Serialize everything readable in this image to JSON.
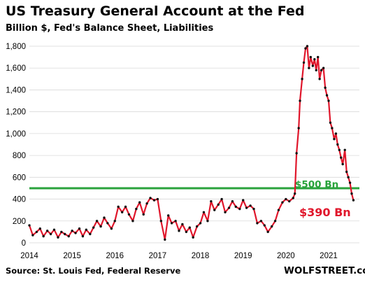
{
  "chart_data": {
    "type": "line",
    "title": "US Treasury General Account at the Fed",
    "subtitle": "Billion $, Fed's Balance Sheet, Liabilities",
    "xlabel": "",
    "ylabel": "",
    "ylim": [
      0,
      1800
    ],
    "xlim": [
      "2014-01",
      "2021-09"
    ],
    "y_ticks": [
      0,
      200,
      400,
      600,
      800,
      1000,
      1200,
      1400,
      1600,
      1800
    ],
    "y_tick_labels": [
      "0",
      "200",
      "400",
      "600",
      "800",
      "1,000",
      "1,200",
      "1,400",
      "1,600",
      "1,800"
    ],
    "x_ticks": [
      2014,
      2015,
      2016,
      2017,
      2018,
      2019,
      2020,
      2021
    ],
    "x_tick_labels": [
      "2014",
      "2015",
      "2016",
      "2017",
      "2018",
      "2019",
      "2020",
      "2021"
    ],
    "grid": "horizontal",
    "series": [
      {
        "name": "",
        "color": "#e0162b",
        "marker_color": "#111111",
        "x": [
          2014.0,
          2014.08,
          2014.17,
          2014.25,
          2014.33,
          2014.42,
          2014.5,
          2014.58,
          2014.67,
          2014.75,
          2014.83,
          2014.92,
          2015.0,
          2015.08,
          2015.17,
          2015.25,
          2015.33,
          2015.42,
          2015.5,
          2015.58,
          2015.67,
          2015.75,
          2015.83,
          2015.92,
          2016.0,
          2016.08,
          2016.17,
          2016.25,
          2016.33,
          2016.42,
          2016.5,
          2016.58,
          2016.67,
          2016.75,
          2016.83,
          2016.92,
          2017.0,
          2017.08,
          2017.17,
          2017.25,
          2017.33,
          2017.42,
          2017.5,
          2017.58,
          2017.67,
          2017.75,
          2017.83,
          2017.92,
          2018.0,
          2018.08,
          2018.17,
          2018.25,
          2018.33,
          2018.42,
          2018.5,
          2018.58,
          2018.67,
          2018.75,
          2018.83,
          2018.92,
          2019.0,
          2019.08,
          2019.17,
          2019.25,
          2019.33,
          2019.42,
          2019.5,
          2019.58,
          2019.67,
          2019.75,
          2019.83,
          2019.92,
          2020.0,
          2020.08,
          2020.17,
          2020.21,
          2020.25,
          2020.3,
          2020.33,
          2020.38,
          2020.42,
          2020.46,
          2020.5,
          2020.54,
          2020.58,
          2020.63,
          2020.67,
          2020.71,
          2020.75,
          2020.79,
          2020.83,
          2020.88,
          2020.92,
          2020.96,
          2021.0,
          2021.04,
          2021.08,
          2021.13,
          2021.17,
          2021.21,
          2021.25,
          2021.29,
          2021.33,
          2021.38,
          2021.42,
          2021.46,
          2021.5,
          2021.54,
          2021.58
        ],
        "values": [
          160,
          70,
          100,
          130,
          60,
          110,
          80,
          120,
          50,
          100,
          80,
          60,
          110,
          90,
          130,
          60,
          120,
          80,
          140,
          200,
          150,
          230,
          180,
          130,
          200,
          330,
          280,
          330,
          260,
          200,
          310,
          370,
          260,
          360,
          410,
          390,
          400,
          200,
          30,
          250,
          180,
          200,
          110,
          170,
          100,
          140,
          50,
          150,
          180,
          280,
          200,
          380,
          300,
          350,
          400,
          280,
          320,
          380,
          330,
          310,
          390,
          320,
          340,
          310,
          180,
          200,
          160,
          100,
          150,
          200,
          300,
          370,
          400,
          380,
          410,
          450,
          820,
          1050,
          1300,
          1500,
          1650,
          1780,
          1800,
          1600,
          1700,
          1620,
          1680,
          1580,
          1700,
          1500,
          1580,
          1600,
          1420,
          1350,
          1300,
          1100,
          1050,
          950,
          1000,
          900,
          850,
          780,
          720,
          850,
          650,
          600,
          550,
          450,
          390
        ]
      }
    ],
    "reference_line": {
      "value": 500,
      "label": "$500 Bn",
      "color": "#2aa33c"
    },
    "end_label": {
      "label": "$390 Bn",
      "color": "#e0162b"
    },
    "source": "Source: St. Louis Fed, Federal Reserve",
    "brand": "WOLFSTREET.com"
  }
}
